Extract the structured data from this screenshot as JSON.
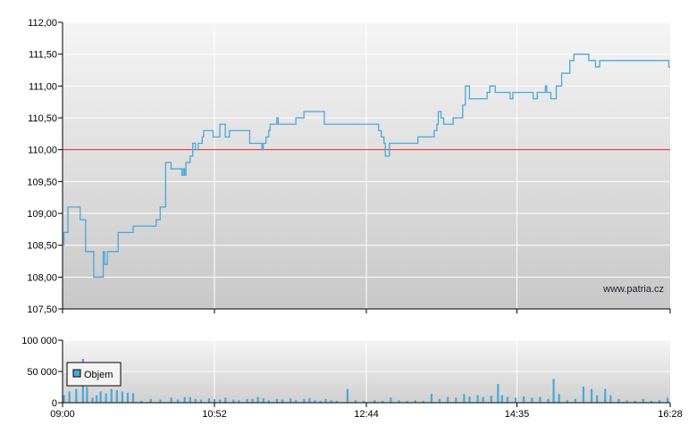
{
  "chart_data": [
    {
      "type": "line",
      "name": "price",
      "reference_line": {
        "value": 110.0,
        "color": "#ee2222"
      },
      "x_ticks": [
        "09:00",
        "10:52",
        "12:44",
        "14:35",
        "16:28"
      ],
      "y_ticks": [
        "107,50",
        "108,00",
        "108,50",
        "109,00",
        "109,50",
        "110,00",
        "110,50",
        "111,00",
        "111,50",
        "112,00"
      ],
      "ylim": [
        107.5,
        112.0
      ],
      "xlim": [
        "09:00",
        "16:28"
      ],
      "grid": true,
      "line_color": "#4aa8d8",
      "watermark": "www.patria.cz",
      "points": [
        [
          "09:00",
          108.5
        ],
        [
          "09:01",
          108.7
        ],
        [
          "09:03",
          108.7
        ],
        [
          "09:04",
          109.1
        ],
        [
          "09:12",
          109.1
        ],
        [
          "09:13",
          108.9
        ],
        [
          "09:16",
          108.9
        ],
        [
          "09:17",
          108.4
        ],
        [
          "09:22",
          108.4
        ],
        [
          "09:23",
          108.0
        ],
        [
          "09:29",
          108.0
        ],
        [
          "09:30",
          108.4
        ],
        [
          "09:31",
          108.2
        ],
        [
          "09:33",
          108.4
        ],
        [
          "09:40",
          108.4
        ],
        [
          "09:41",
          108.7
        ],
        [
          "09:51",
          108.7
        ],
        [
          "09:52",
          108.8
        ],
        [
          "10:02",
          108.8
        ],
        [
          "10:08",
          108.8
        ],
        [
          "10:09",
          108.9
        ],
        [
          "10:11",
          108.9
        ],
        [
          "10:12",
          109.1
        ],
        [
          "10:15",
          109.1
        ],
        [
          "10:16",
          109.8
        ],
        [
          "10:19",
          109.8
        ],
        [
          "10:20",
          109.7
        ],
        [
          "10:27",
          109.7
        ],
        [
          "10:28",
          109.6
        ],
        [
          "10:29",
          109.7
        ],
        [
          "10:30",
          109.6
        ],
        [
          "10:31",
          109.8
        ],
        [
          "10:33",
          109.8
        ],
        [
          "10:34",
          109.9
        ],
        [
          "10:36",
          110.1
        ],
        [
          "10:38",
          110.0
        ],
        [
          "10:40",
          110.1
        ],
        [
          "10:42",
          110.1
        ],
        [
          "10:43",
          110.2
        ],
        [
          "10:44",
          110.3
        ],
        [
          "10:50",
          110.3
        ],
        [
          "10:51",
          110.2
        ],
        [
          "10:55",
          110.2
        ],
        [
          "10:56",
          110.4
        ],
        [
          "10:59",
          110.4
        ],
        [
          "11:00",
          110.2
        ],
        [
          "11:02",
          110.2
        ],
        [
          "11:03",
          110.3
        ],
        [
          "11:17",
          110.3
        ],
        [
          "11:18",
          110.1
        ],
        [
          "11:26",
          110.1
        ],
        [
          "11:27",
          110.0
        ],
        [
          "11:28",
          110.1
        ],
        [
          "11:30",
          110.2
        ],
        [
          "11:32",
          110.3
        ],
        [
          "11:33",
          110.4
        ],
        [
          "11:37",
          110.4
        ],
        [
          "11:38",
          110.5
        ],
        [
          "11:39",
          110.4
        ],
        [
          "11:51",
          110.4
        ],
        [
          "11:52",
          110.5
        ],
        [
          "11:57",
          110.5
        ],
        [
          "11:58",
          110.6
        ],
        [
          "12:12",
          110.6
        ],
        [
          "12:13",
          110.4
        ],
        [
          "12:35",
          110.4
        ],
        [
          "12:37",
          110.4
        ],
        [
          "12:38",
          110.4
        ],
        [
          "12:52",
          110.4
        ],
        [
          "12:53",
          110.3
        ],
        [
          "12:55",
          110.2
        ],
        [
          "12:57",
          110.1
        ],
        [
          "12:58",
          109.9
        ],
        [
          "13:00",
          109.9
        ],
        [
          "13:01",
          110.1
        ],
        [
          "13:21",
          110.1
        ],
        [
          "13:22",
          110.2
        ],
        [
          "13:33",
          110.2
        ],
        [
          "13:34",
          110.3
        ],
        [
          "13:36",
          110.4
        ],
        [
          "13:37",
          110.6
        ],
        [
          "13:39",
          110.5
        ],
        [
          "13:40",
          110.5
        ],
        [
          "13:41",
          110.4
        ],
        [
          "13:47",
          110.4
        ],
        [
          "13:48",
          110.5
        ],
        [
          "13:53",
          110.5
        ],
        [
          "13:55",
          110.7
        ],
        [
          "13:57",
          111.0
        ],
        [
          "13:59",
          111.0
        ],
        [
          "14:00",
          110.8
        ],
        [
          "14:12",
          110.8
        ],
        [
          "14:13",
          110.9
        ],
        [
          "14:15",
          111.0
        ],
        [
          "14:18",
          111.0
        ],
        [
          "14:19",
          110.9
        ],
        [
          "14:29",
          110.9
        ],
        [
          "14:30",
          110.8
        ],
        [
          "14:31",
          110.8
        ],
        [
          "14:32",
          110.9
        ],
        [
          "14:46",
          110.9
        ],
        [
          "14:47",
          110.8
        ],
        [
          "14:49",
          110.8
        ],
        [
          "14:50",
          110.9
        ],
        [
          "14:55",
          110.9
        ],
        [
          "14:56",
          111.0
        ],
        [
          "14:57",
          110.9
        ],
        [
          "14:59",
          110.9
        ],
        [
          "15:00",
          110.8
        ],
        [
          "15:03",
          110.8
        ],
        [
          "15:04",
          111.0
        ],
        [
          "15:07",
          111.0
        ],
        [
          "15:08",
          111.2
        ],
        [
          "15:13",
          111.2
        ],
        [
          "15:14",
          111.4
        ],
        [
          "15:16",
          111.4
        ],
        [
          "15:17",
          111.5
        ],
        [
          "15:27",
          111.5
        ],
        [
          "15:28",
          111.4
        ],
        [
          "15:32",
          111.4
        ],
        [
          "15:33",
          111.3
        ],
        [
          "15:35",
          111.3
        ],
        [
          "15:36",
          111.4
        ],
        [
          "16:26",
          111.4
        ],
        [
          "16:27",
          111.3
        ],
        [
          "16:28",
          111.3
        ]
      ]
    },
    {
      "type": "bar",
      "name": "volume",
      "legend": [
        "Objem"
      ],
      "bar_color": "#4aa8d8",
      "y_ticks": [
        "0",
        "50 000",
        "100 000"
      ],
      "ylim": [
        0,
        100000
      ],
      "x_ticks": [
        "09:00",
        "10:52",
        "12:44",
        "14:35",
        "16:28"
      ],
      "grid": true,
      "bars": [
        [
          "09:01",
          12000
        ],
        [
          "09:05",
          18000
        ],
        [
          "09:10",
          22000
        ],
        [
          "09:15",
          70000
        ],
        [
          "09:18",
          25000
        ],
        [
          "09:22",
          8000
        ],
        [
          "09:25",
          12000
        ],
        [
          "09:28",
          18000
        ],
        [
          "09:32",
          15000
        ],
        [
          "09:36",
          22000
        ],
        [
          "09:40",
          20000
        ],
        [
          "09:44",
          18000
        ],
        [
          "09:48",
          16000
        ],
        [
          "09:52",
          15000
        ],
        [
          "09:58",
          3000
        ],
        [
          "10:05",
          6000
        ],
        [
          "10:12",
          5000
        ],
        [
          "10:20",
          8000
        ],
        [
          "10:25",
          5000
        ],
        [
          "10:30",
          9000
        ],
        [
          "10:34",
          9000
        ],
        [
          "10:38",
          6000
        ],
        [
          "10:42",
          5000
        ],
        [
          "10:48",
          7000
        ],
        [
          "10:52",
          6000
        ],
        [
          "10:56",
          5000
        ],
        [
          "11:00",
          8000
        ],
        [
          "11:06",
          5000
        ],
        [
          "11:10",
          4000
        ],
        [
          "11:16",
          6000
        ],
        [
          "11:20",
          6000
        ],
        [
          "11:24",
          9000
        ],
        [
          "11:28",
          7000
        ],
        [
          "11:32",
          4000
        ],
        [
          "11:38",
          6000
        ],
        [
          "11:42",
          5000
        ],
        [
          "11:48",
          7000
        ],
        [
          "11:52",
          4000
        ],
        [
          "11:58",
          6000
        ],
        [
          "12:02",
          7000
        ],
        [
          "12:06",
          4000
        ],
        [
          "12:10",
          3000
        ],
        [
          "12:14",
          6000
        ],
        [
          "12:18",
          4000
        ],
        [
          "12:22",
          3000
        ],
        [
          "12:30",
          22000
        ],
        [
          "12:36",
          4000
        ],
        [
          "12:42",
          3000
        ],
        [
          "12:50",
          4000
        ],
        [
          "12:56",
          3000
        ],
        [
          "13:02",
          8000
        ],
        [
          "13:08",
          4000
        ],
        [
          "13:14",
          3000
        ],
        [
          "13:20",
          4000
        ],
        [
          "13:26",
          3000
        ],
        [
          "13:32",
          14000
        ],
        [
          "13:38",
          6000
        ],
        [
          "13:44",
          9000
        ],
        [
          "13:50",
          8000
        ],
        [
          "13:56",
          14000
        ],
        [
          "14:00",
          10000
        ],
        [
          "14:06",
          12000
        ],
        [
          "14:10",
          9000
        ],
        [
          "14:16",
          11000
        ],
        [
          "14:21",
          30000
        ],
        [
          "14:24",
          12000
        ],
        [
          "14:28",
          9000
        ],
        [
          "14:34",
          8000
        ],
        [
          "14:40",
          10000
        ],
        [
          "14:46",
          8000
        ],
        [
          "14:52",
          9000
        ],
        [
          "14:58",
          6000
        ],
        [
          "15:02",
          38000
        ],
        [
          "15:06",
          14000
        ],
        [
          "15:12",
          4000
        ],
        [
          "15:18",
          6000
        ],
        [
          "15:24",
          26000
        ],
        [
          "15:30",
          22000
        ],
        [
          "15:34",
          12000
        ],
        [
          "15:40",
          22000
        ],
        [
          "15:44",
          12000
        ],
        [
          "15:50",
          6000
        ],
        [
          "15:56",
          4000
        ],
        [
          "16:02",
          3000
        ],
        [
          "16:08",
          6000
        ],
        [
          "16:14",
          3000
        ],
        [
          "16:20",
          4000
        ],
        [
          "16:26",
          8000
        ]
      ]
    }
  ]
}
